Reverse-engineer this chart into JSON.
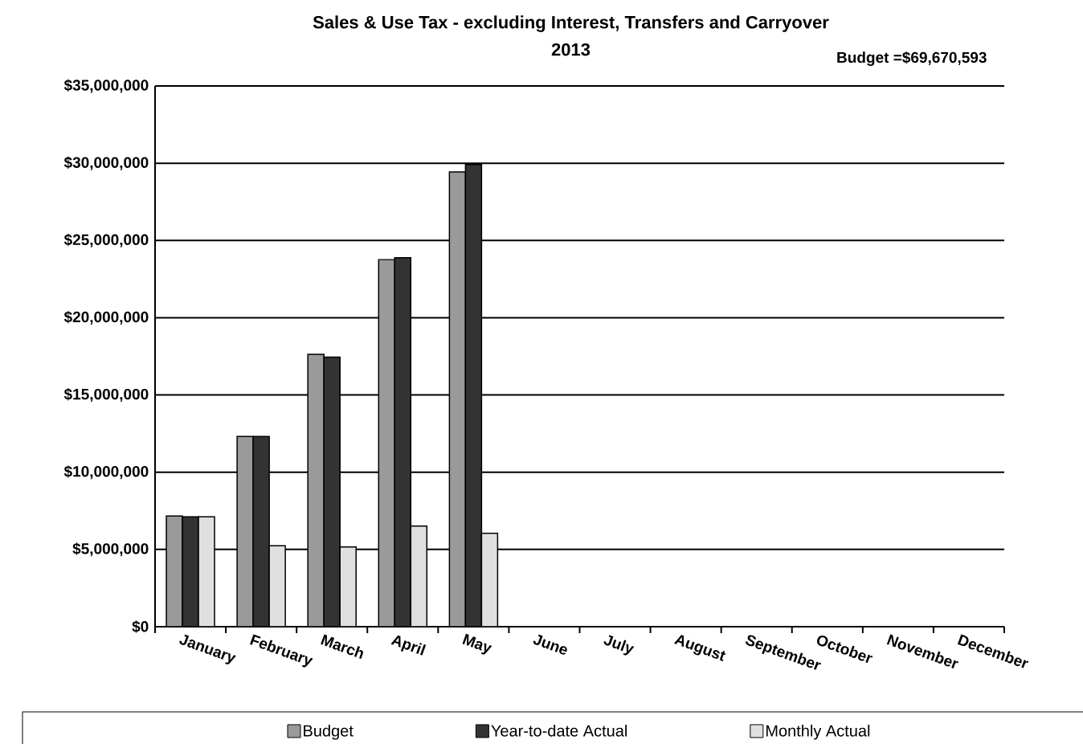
{
  "chart_data": {
    "type": "bar",
    "title": "Sales & Use Tax - excluding Interest, Transfers and Carryover",
    "subtitle": "2013",
    "categories": [
      "January",
      "February",
      "March",
      "April",
      "May",
      "June",
      "July",
      "August",
      "September",
      "October",
      "November",
      "December"
    ],
    "series": [
      {
        "name": "Budget",
        "color": "#9a9a9a",
        "values": [
          7170000,
          12310000,
          17630000,
          23760000,
          29440000,
          null,
          null,
          null,
          null,
          null,
          null,
          null
        ]
      },
      {
        "name": "Year-to-date Actual",
        "color": "#333333",
        "values": [
          7110000,
          12310000,
          17450000,
          23880000,
          29920000,
          null,
          null,
          null,
          null,
          null,
          null,
          null
        ]
      },
      {
        "name": "Monthly Actual",
        "color": "#e0e0e0",
        "values": [
          7110000,
          5240000,
          5160000,
          6510000,
          6040000,
          null,
          null,
          null,
          null,
          null,
          null,
          null
        ]
      }
    ],
    "ylim": [
      0,
      35000000
    ],
    "yticks": [
      {
        "value": 0,
        "label": "$0"
      },
      {
        "value": 5000000,
        "label": "$5,000,000"
      },
      {
        "value": 10000000,
        "label": "$10,000,000"
      },
      {
        "value": 15000000,
        "label": "$15,000,000"
      },
      {
        "value": 20000000,
        "label": "$20,000,000"
      },
      {
        "value": 25000000,
        "label": "$25,000,000"
      },
      {
        "value": 30000000,
        "label": "$30,000,000"
      },
      {
        "value": 35000000,
        "label": "$35,000,000"
      }
    ],
    "grid": "y",
    "legend": "bottom",
    "annotations": [
      "Budget  =$69,670,593"
    ]
  }
}
